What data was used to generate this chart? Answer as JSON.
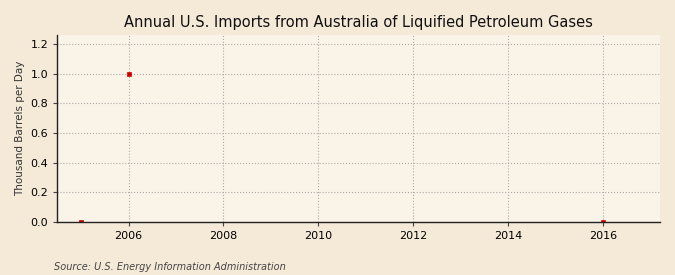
{
  "title": "Annual U.S. Imports from Australia of Liquified Petroleum Gases",
  "ylabel": "Thousand Barrels per Day",
  "source": "Source: U.S. Energy Information Administration",
  "xlim": [
    2004.5,
    2017.2
  ],
  "ylim": [
    0.0,
    1.26
  ],
  "yticks": [
    0.0,
    0.2,
    0.4,
    0.6,
    0.8,
    1.0,
    1.2
  ],
  "xticks": [
    2006,
    2008,
    2010,
    2012,
    2014,
    2016
  ],
  "data_x": [
    2005,
    2006,
    2016
  ],
  "data_y": [
    0.0,
    1.0,
    0.0
  ],
  "marker_color": "#cc0000",
  "marker": "s",
  "marker_size": 3,
  "background_color": "#f5ead8",
  "plot_bg_color": "#faf4e8",
  "grid_color": "#aaaaaa",
  "grid_style": ":",
  "title_fontsize": 10.5,
  "axis_label_fontsize": 7.5,
  "tick_fontsize": 8,
  "source_fontsize": 7
}
